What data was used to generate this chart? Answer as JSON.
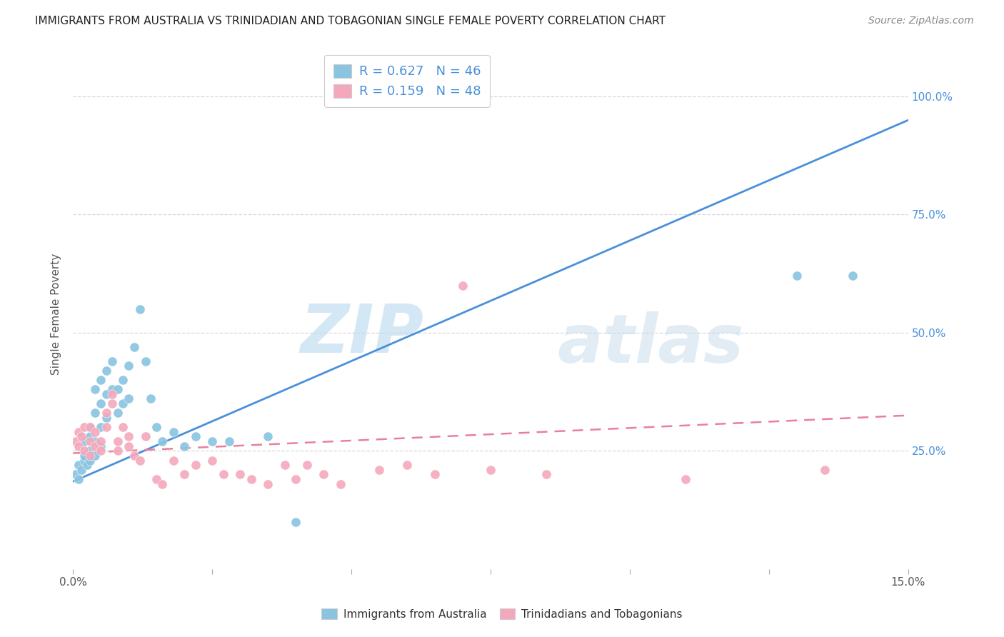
{
  "title": "IMMIGRANTS FROM AUSTRALIA VS TRINIDADIAN AND TOBAGONIAN SINGLE FEMALE POVERTY CORRELATION CHART",
  "source": "Source: ZipAtlas.com",
  "ylabel": "Single Female Poverty",
  "ytick_vals": [
    0.0,
    0.25,
    0.5,
    0.75,
    1.0
  ],
  "ytick_labels": [
    "",
    "25.0%",
    "50.0%",
    "75.0%",
    "100.0%"
  ],
  "xmin": 0.0,
  "xmax": 0.15,
  "ymin": 0.0,
  "ymax": 1.08,
  "legend_r1": "0.627",
  "legend_n1": "46",
  "legend_r2": "0.159",
  "legend_n2": "48",
  "color_blue": "#89c4e1",
  "color_pink": "#f4a8bb",
  "color_blue_line": "#4a90d9",
  "color_pink_line": "#e87fa0",
  "label1": "Immigrants from Australia",
  "label2": "Trinidadians and Tobagonians",
  "watermark_zip": "ZIP",
  "watermark_atlas": "atlas",
  "blue_points_x": [
    0.0005,
    0.001,
    0.001,
    0.0015,
    0.002,
    0.002,
    0.002,
    0.0025,
    0.003,
    0.003,
    0.003,
    0.003,
    0.004,
    0.004,
    0.004,
    0.004,
    0.005,
    0.005,
    0.005,
    0.005,
    0.006,
    0.006,
    0.006,
    0.007,
    0.007,
    0.008,
    0.008,
    0.009,
    0.009,
    0.01,
    0.01,
    0.011,
    0.012,
    0.013,
    0.014,
    0.015,
    0.016,
    0.018,
    0.02,
    0.022,
    0.025,
    0.028,
    0.035,
    0.04,
    0.13,
    0.14
  ],
  "blue_points_y": [
    0.2,
    0.19,
    0.22,
    0.21,
    0.23,
    0.24,
    0.27,
    0.22,
    0.23,
    0.25,
    0.28,
    0.3,
    0.24,
    0.27,
    0.33,
    0.38,
    0.26,
    0.3,
    0.35,
    0.4,
    0.32,
    0.37,
    0.42,
    0.38,
    0.44,
    0.33,
    0.38,
    0.35,
    0.4,
    0.36,
    0.43,
    0.47,
    0.55,
    0.44,
    0.36,
    0.3,
    0.27,
    0.29,
    0.26,
    0.28,
    0.27,
    0.27,
    0.28,
    0.1,
    0.62,
    0.62
  ],
  "pink_points_x": [
    0.0005,
    0.001,
    0.001,
    0.0015,
    0.002,
    0.002,
    0.003,
    0.003,
    0.003,
    0.004,
    0.004,
    0.005,
    0.005,
    0.006,
    0.006,
    0.007,
    0.007,
    0.008,
    0.008,
    0.009,
    0.01,
    0.01,
    0.011,
    0.012,
    0.013,
    0.015,
    0.016,
    0.018,
    0.02,
    0.022,
    0.025,
    0.027,
    0.03,
    0.032,
    0.035,
    0.038,
    0.04,
    0.042,
    0.045,
    0.048,
    0.055,
    0.06,
    0.065,
    0.07,
    0.075,
    0.085,
    0.11,
    0.135
  ],
  "pink_points_y": [
    0.27,
    0.26,
    0.29,
    0.28,
    0.25,
    0.3,
    0.27,
    0.24,
    0.3,
    0.26,
    0.29,
    0.27,
    0.25,
    0.3,
    0.33,
    0.35,
    0.37,
    0.27,
    0.25,
    0.3,
    0.26,
    0.28,
    0.24,
    0.23,
    0.28,
    0.19,
    0.18,
    0.23,
    0.2,
    0.22,
    0.23,
    0.2,
    0.2,
    0.19,
    0.18,
    0.22,
    0.19,
    0.22,
    0.2,
    0.18,
    0.21,
    0.22,
    0.2,
    0.6,
    0.21,
    0.2,
    0.19,
    0.21
  ],
  "blue_line_x": [
    0.0,
    0.15
  ],
  "blue_line_y": [
    0.185,
    0.95
  ],
  "pink_line_x": [
    0.0,
    0.15
  ],
  "pink_line_y": [
    0.245,
    0.325
  ],
  "background_color": "#ffffff",
  "grid_color": "#d8d8d8",
  "title_color": "#222222"
}
